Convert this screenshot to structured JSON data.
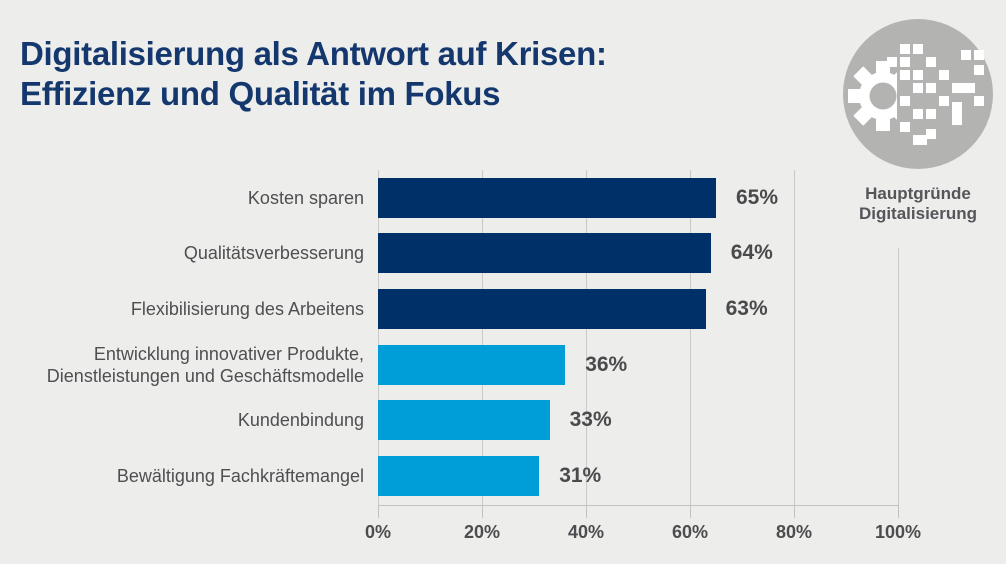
{
  "page": {
    "background_color": "#EDEDEB",
    "title_lines": [
      "Digitalisierung als Antwort auf Krisen:",
      "Effizienz und Qualität im Fokus"
    ],
    "title_color": "#14386E"
  },
  "badge": {
    "icon": "pixelated-gear-icon",
    "circle_color": "#B3B3B1",
    "glyph_color": "#FFFFFF",
    "caption_lines": [
      "Hauptgründe",
      "Digitalisierung"
    ]
  },
  "chart_data": {
    "type": "bar",
    "orientation": "horizontal",
    "title": "",
    "xlabel": "",
    "ylabel": "",
    "categories": [
      "Kosten sparen",
      "Qualitätsverbesserung",
      "Flexibilisierung des Arbeitens",
      "Entwicklung innovativer Produkte, Dienstleistungen und Geschäftsmodelle",
      "Kundenbindung",
      "Bewältigung Fachkräftemangel"
    ],
    "category_lines": [
      [
        "Kosten sparen"
      ],
      [
        "Qualitätsverbesserung"
      ],
      [
        "Flexibilisierung des Arbeitens"
      ],
      [
        "Entwicklung innovativer Produkte,",
        "Dienstleistungen und Geschäftsmodelle"
      ],
      [
        "Kundenbindung"
      ],
      [
        "Bewältigung Fachkräftemangel"
      ]
    ],
    "values": [
      65,
      64,
      63,
      36,
      33,
      31
    ],
    "value_labels": [
      "65%",
      "64%",
      "63%",
      "36%",
      "33%",
      "31%"
    ],
    "bar_colors": [
      "#003068",
      "#003068",
      "#003068",
      "#009ED8",
      "#009ED8",
      "#009ED8"
    ],
    "x_ticks": [
      "0%",
      "20%",
      "40%",
      "60%",
      "80%",
      "100%"
    ],
    "x_tick_values": [
      0,
      20,
      40,
      60,
      80,
      100
    ],
    "xlim": [
      0,
      100
    ],
    "grid": "vertical-gridlines",
    "legend": "none"
  },
  "colors": {
    "navy": "#003068",
    "cyan": "#009ED8",
    "grid": "#C9C9C7",
    "axis_text": "#4D4D4F",
    "label_text": "#4F4F52",
    "caption_text": "#55555A"
  }
}
